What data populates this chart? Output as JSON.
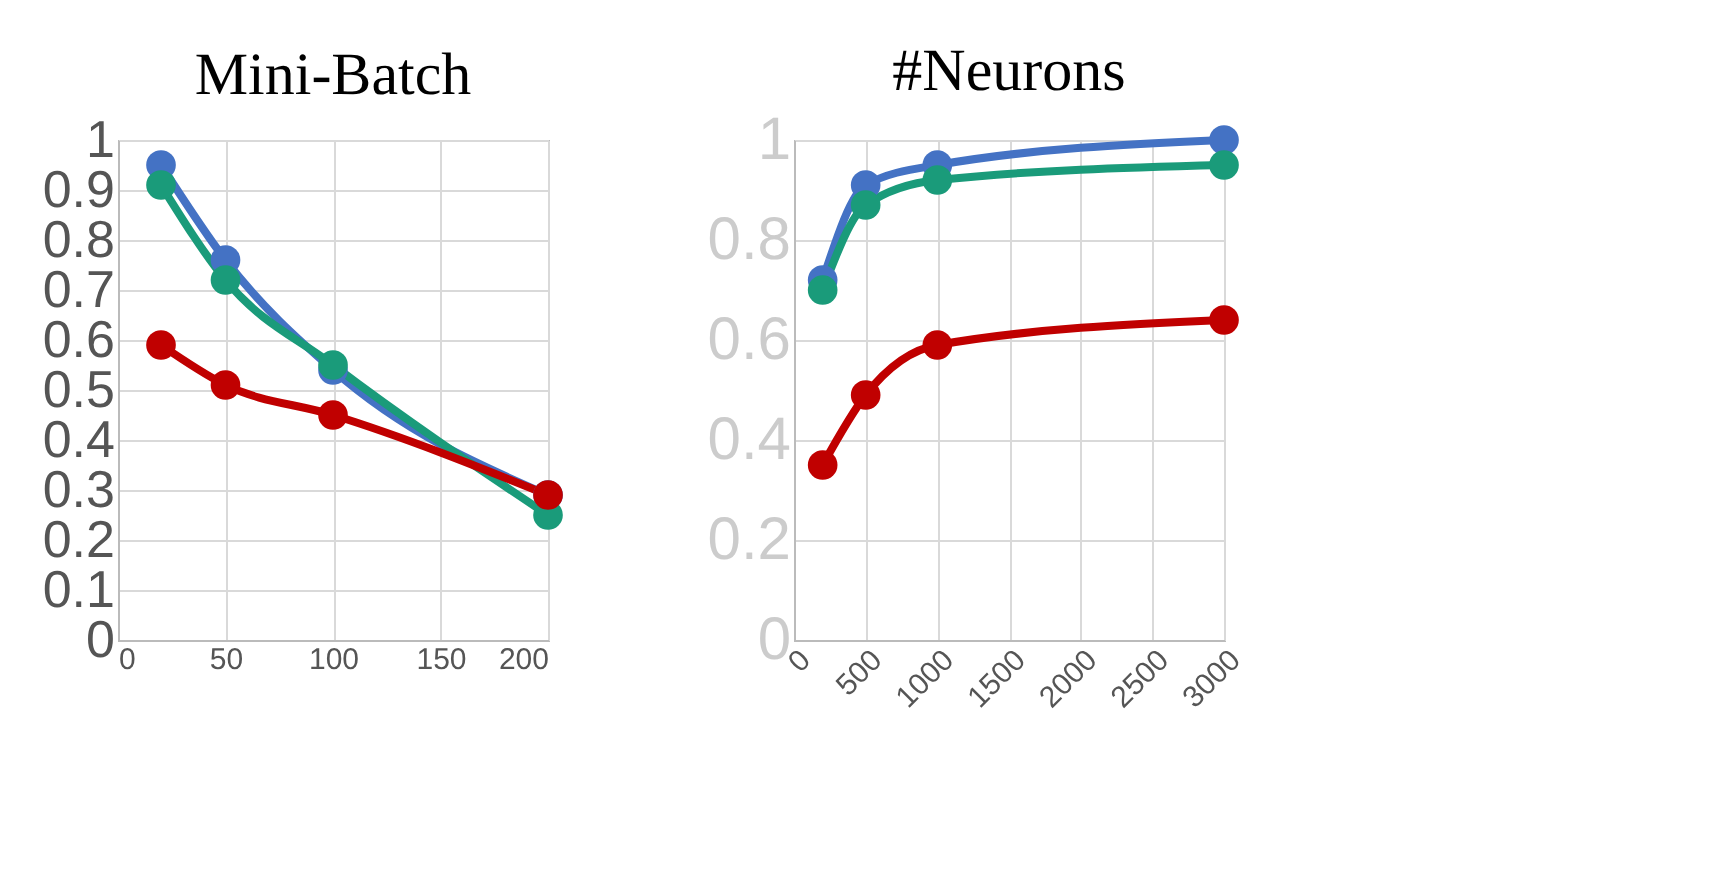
{
  "chart_data": [
    {
      "type": "line",
      "title": "Mini-Batch",
      "x": [
        20,
        50,
        100,
        200
      ],
      "xlim": [
        0,
        200
      ],
      "xticks": [
        0,
        50,
        100,
        150,
        200
      ],
      "ylim": [
        0,
        1
      ],
      "yticks": [
        0,
        0.1,
        0.2,
        0.3,
        0.4,
        0.5,
        0.6,
        0.7,
        0.8,
        0.9,
        1
      ],
      "grid": true,
      "marker": "circle",
      "legend": false,
      "series": [
        {
          "color": "#4472c4",
          "values": [
            0.95,
            0.76,
            0.54,
            0.29
          ]
        },
        {
          "color": "#1a9b7a",
          "values": [
            0.91,
            0.72,
            0.55,
            0.25
          ]
        },
        {
          "color": "#c00000",
          "values": [
            0.59,
            0.51,
            0.45,
            0.29
          ]
        }
      ]
    },
    {
      "type": "line",
      "title": "#Neurons",
      "x": [
        200,
        500,
        1000,
        3000
      ],
      "xlim": [
        0,
        3000
      ],
      "xticks": [
        0,
        500,
        1000,
        1500,
        2000,
        2500,
        3000
      ],
      "ylim": [
        0,
        1
      ],
      "yticks": [
        0,
        0.2,
        0.4,
        0.6,
        0.8,
        1
      ],
      "grid": true,
      "marker": "circle",
      "legend": false,
      "series": [
        {
          "color": "#4472c4",
          "values": [
            0.72,
            0.91,
            0.95,
            1.0
          ]
        },
        {
          "color": "#1a9b7a",
          "values": [
            0.7,
            0.87,
            0.92,
            0.95
          ]
        },
        {
          "color": "#c00000",
          "values": [
            0.35,
            0.49,
            0.59,
            0.64
          ]
        }
      ]
    }
  ]
}
